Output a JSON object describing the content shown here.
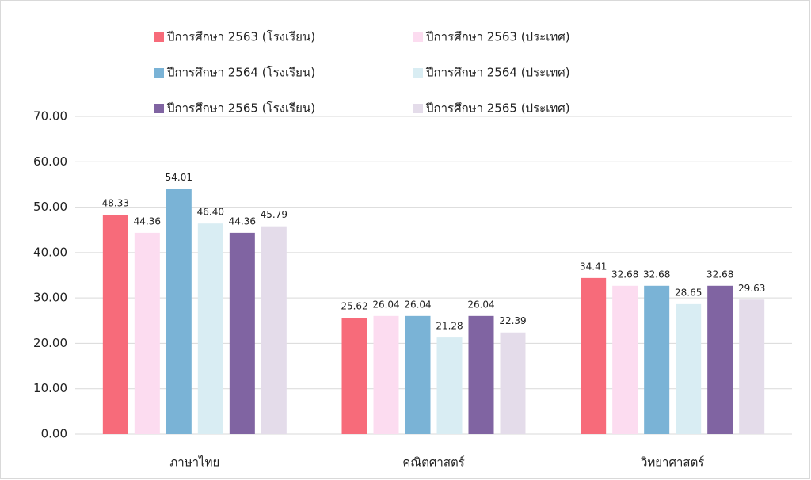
{
  "chart_data": {
    "type": "bar",
    "categories": [
      "ภาษาไทย",
      "คณิตศาสตร์",
      "วิทยาศาสตร์"
    ],
    "series": [
      {
        "name": "ปีการศึกษา 2563 (โรงเรียน)",
        "color": "#f76b7a",
        "values": [
          48.33,
          25.62,
          34.41
        ],
        "value_labels": [
          "48.33",
          "25.62",
          "34.41"
        ]
      },
      {
        "name": "ปีการศึกษา 2563 (ประเทศ)",
        "color": "#fcdcf0",
        "values": [
          44.36,
          26.04,
          32.68
        ],
        "value_labels": [
          "44.36",
          "26.04",
          "32.68"
        ]
      },
      {
        "name": "ปีการศึกษา 2564 (โรงเรียน)",
        "color": "#7ab3d6",
        "values": [
          54.01,
          26.04,
          32.68
        ],
        "value_labels": [
          "54.01",
          "26.04",
          "32.68"
        ]
      },
      {
        "name": "ปีการศึกษา 2564 (ประเทศ)",
        "color": "#d9edf3",
        "values": [
          46.4,
          21.28,
          28.65
        ],
        "value_labels": [
          "46.40",
          "21.28",
          "28.65"
        ]
      },
      {
        "name": "ปีการศึกษา 2565 (โรงเรียน)",
        "color": "#8064a2",
        "values": [
          44.36,
          26.04,
          32.68
        ],
        "value_labels": [
          "44.36",
          "26.04",
          "32.68"
        ]
      },
      {
        "name": "ปีการศึกษา 2565 (ประเทศ)",
        "color": "#e4dcea",
        "values": [
          45.79,
          22.39,
          29.63
        ],
        "value_labels": [
          "45.79",
          "22.39",
          "29.63"
        ]
      }
    ],
    "ylim": [
      0,
      70
    ],
    "yticks": [
      {
        "value": 0,
        "label": "0.00"
      },
      {
        "value": 10,
        "label": "10.00"
      },
      {
        "value": 20,
        "label": "20.00"
      },
      {
        "value": 30,
        "label": "30.00"
      },
      {
        "value": 40,
        "label": "40.00"
      },
      {
        "value": 50,
        "label": "50.00"
      },
      {
        "value": 60,
        "label": "60.00"
      },
      {
        "value": 70,
        "label": "70.00"
      }
    ],
    "grid": true,
    "legend": "top"
  }
}
